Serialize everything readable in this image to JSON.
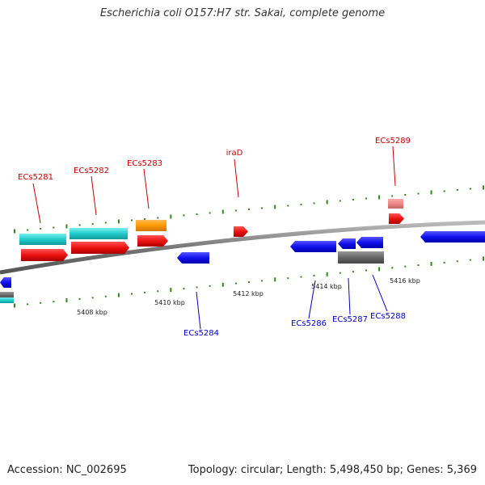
{
  "title": "Escherichia coli O157:H7 str. Sakai, complete genome",
  "footer": {
    "accession": "Accession: NC_002695",
    "summary": "Topology: circular; Length: 5,498,450 bp; Genes: 5,369"
  },
  "colors": {
    "backbone": "#8c8c8c",
    "ticks": "#2e8b12",
    "forward_label": "#cc0000",
    "reverse_label": "#0000cc",
    "red": "#ee1111",
    "pink": "#ee8888",
    "cyan": "#22cccc",
    "orange": "#ff9900",
    "blue": "#1111ee",
    "gray": "#666666"
  },
  "scale_labels": [
    "5408 kbp",
    "5410 kbp",
    "5412 kbp",
    "5414 kbp",
    "5416 kbp"
  ],
  "forward_genes": [
    {
      "label": "ECs5281"
    },
    {
      "label": "ECs5282"
    },
    {
      "label": "ECs5283"
    },
    {
      "label": "iraD"
    },
    {
      "label": "ECs5289"
    }
  ],
  "reverse_genes": [
    {
      "label": "ECs5284"
    },
    {
      "label": "ECs5286"
    },
    {
      "label": "ECs5287"
    },
    {
      "label": "ECs5288"
    }
  ]
}
